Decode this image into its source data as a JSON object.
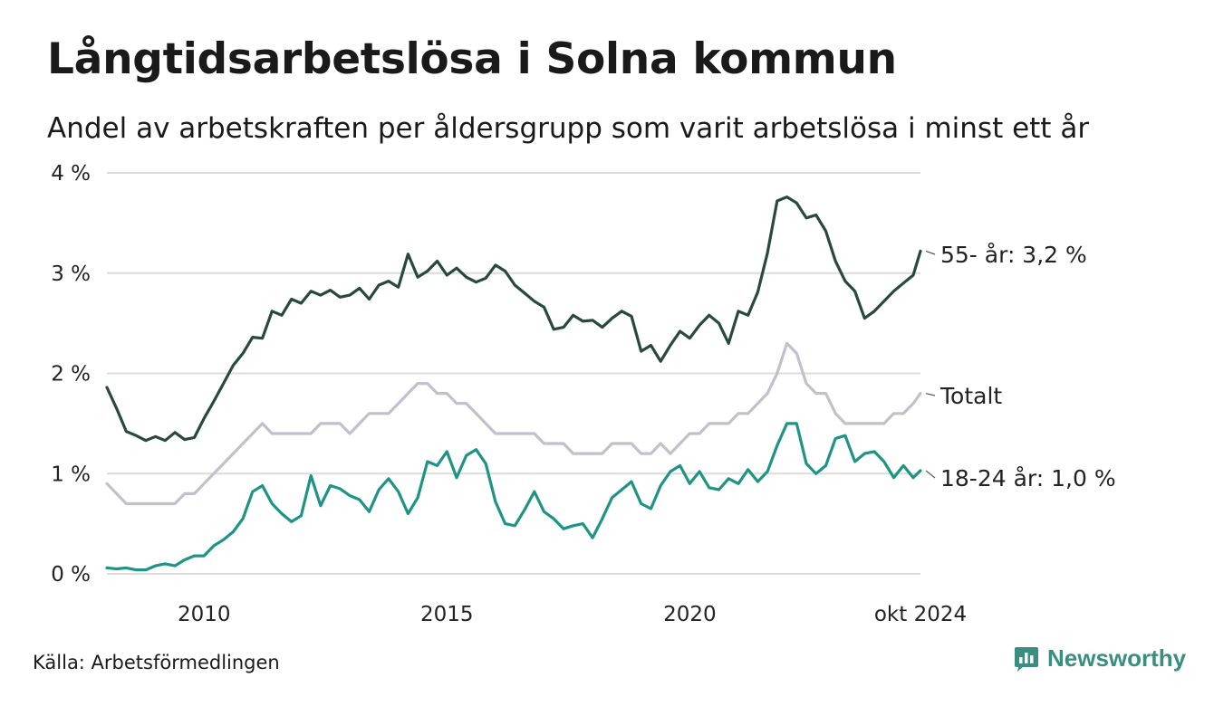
{
  "title": "Långtidsarbetslösa i Solna kommun",
  "subtitle": "Andel av arbetskraften per åldersgrupp som varit arbetslösa i minst ett år",
  "source": "Källa: Arbetsförmedlingen",
  "brand": {
    "name": "Newsworthy",
    "icon": "newsworthy-chart-bubble-icon"
  },
  "colors": {
    "s55": "#27493f",
    "total": "#c2c0cc",
    "s1824": "#1f9485",
    "grid": "#dcdcdc",
    "brand": "#3a8e80"
  },
  "chart_data": {
    "type": "line",
    "title": "Långtidsarbetslösa i Solna kommun",
    "xlabel": "",
    "ylabel": "",
    "x_start": 2008.0,
    "x_end": 2024.75,
    "xlim": [
      2008.0,
      2024.75
    ],
    "ylim": [
      0,
      4
    ],
    "x_ticks": [
      {
        "value": 2010,
        "label": "2010"
      },
      {
        "value": 2015,
        "label": "2015"
      },
      {
        "value": 2020,
        "label": "2020"
      },
      {
        "value": 2024.75,
        "label": "okt 2024"
      }
    ],
    "y_ticks": [
      {
        "value": 0,
        "label": "0 %"
      },
      {
        "value": 1,
        "label": "1 %"
      },
      {
        "value": 2,
        "label": "2 %"
      },
      {
        "value": 3,
        "label": "3 %"
      },
      {
        "value": 4,
        "label": "4 %"
      }
    ],
    "grid": true,
    "series": [
      {
        "name": "55- år",
        "label": "55- år: 3,2 %",
        "color_key": "s55",
        "points": [
          [
            2008.0,
            1.86
          ],
          [
            2008.2,
            1.65
          ],
          [
            2008.4,
            1.42
          ],
          [
            2008.6,
            1.38
          ],
          [
            2008.8,
            1.33
          ],
          [
            2009.0,
            1.37
          ],
          [
            2009.2,
            1.33
          ],
          [
            2009.4,
            1.41
          ],
          [
            2009.6,
            1.34
          ],
          [
            2009.8,
            1.36
          ],
          [
            2010.0,
            1.55
          ],
          [
            2010.2,
            1.72
          ],
          [
            2010.4,
            1.9
          ],
          [
            2010.6,
            2.08
          ],
          [
            2010.8,
            2.2
          ],
          [
            2011.0,
            2.36
          ],
          [
            2011.2,
            2.35
          ],
          [
            2011.4,
            2.62
          ],
          [
            2011.6,
            2.58
          ],
          [
            2011.8,
            2.74
          ],
          [
            2012.0,
            2.7
          ],
          [
            2012.2,
            2.82
          ],
          [
            2012.4,
            2.78
          ],
          [
            2012.6,
            2.83
          ],
          [
            2012.8,
            2.76
          ],
          [
            2013.0,
            2.78
          ],
          [
            2013.2,
            2.85
          ],
          [
            2013.4,
            2.74
          ],
          [
            2013.6,
            2.88
          ],
          [
            2013.8,
            2.92
          ],
          [
            2014.0,
            2.86
          ],
          [
            2014.2,
            3.19
          ],
          [
            2014.4,
            2.96
          ],
          [
            2014.6,
            3.02
          ],
          [
            2014.8,
            3.12
          ],
          [
            2015.0,
            2.98
          ],
          [
            2015.2,
            3.05
          ],
          [
            2015.4,
            2.96
          ],
          [
            2015.6,
            2.91
          ],
          [
            2015.8,
            2.95
          ],
          [
            2016.0,
            3.08
          ],
          [
            2016.2,
            3.02
          ],
          [
            2016.4,
            2.88
          ],
          [
            2016.6,
            2.8
          ],
          [
            2016.8,
            2.72
          ],
          [
            2017.0,
            2.66
          ],
          [
            2017.2,
            2.44
          ],
          [
            2017.4,
            2.46
          ],
          [
            2017.6,
            2.58
          ],
          [
            2017.8,
            2.52
          ],
          [
            2018.0,
            2.53
          ],
          [
            2018.2,
            2.46
          ],
          [
            2018.4,
            2.55
          ],
          [
            2018.6,
            2.62
          ],
          [
            2018.8,
            2.57
          ],
          [
            2019.0,
            2.22
          ],
          [
            2019.2,
            2.28
          ],
          [
            2019.4,
            2.12
          ],
          [
            2019.6,
            2.28
          ],
          [
            2019.8,
            2.42
          ],
          [
            2020.0,
            2.35
          ],
          [
            2020.2,
            2.48
          ],
          [
            2020.4,
            2.58
          ],
          [
            2020.6,
            2.5
          ],
          [
            2020.8,
            2.3
          ],
          [
            2021.0,
            2.62
          ],
          [
            2021.2,
            2.58
          ],
          [
            2021.4,
            2.81
          ],
          [
            2021.6,
            3.2
          ],
          [
            2021.8,
            3.72
          ],
          [
            2022.0,
            3.76
          ],
          [
            2022.2,
            3.7
          ],
          [
            2022.4,
            3.55
          ],
          [
            2022.6,
            3.58
          ],
          [
            2022.8,
            3.42
          ],
          [
            2023.0,
            3.12
          ],
          [
            2023.2,
            2.92
          ],
          [
            2023.4,
            2.82
          ],
          [
            2023.6,
            2.55
          ],
          [
            2023.8,
            2.62
          ],
          [
            2024.0,
            2.72
          ],
          [
            2024.2,
            2.82
          ],
          [
            2024.4,
            2.9
          ],
          [
            2024.6,
            2.98
          ],
          [
            2024.75,
            3.22
          ]
        ]
      },
      {
        "name": "Totalt",
        "label": "Totalt",
        "color_key": "total",
        "points": [
          [
            2008.0,
            0.9
          ],
          [
            2008.2,
            0.8
          ],
          [
            2008.4,
            0.7
          ],
          [
            2008.6,
            0.7
          ],
          [
            2008.8,
            0.7
          ],
          [
            2009.0,
            0.7
          ],
          [
            2009.2,
            0.7
          ],
          [
            2009.4,
            0.7
          ],
          [
            2009.6,
            0.8
          ],
          [
            2009.8,
            0.8
          ],
          [
            2010.0,
            0.9
          ],
          [
            2010.2,
            1.0
          ],
          [
            2010.4,
            1.1
          ],
          [
            2010.6,
            1.2
          ],
          [
            2010.8,
            1.3
          ],
          [
            2011.0,
            1.4
          ],
          [
            2011.2,
            1.5
          ],
          [
            2011.4,
            1.4
          ],
          [
            2011.6,
            1.4
          ],
          [
            2011.8,
            1.4
          ],
          [
            2012.0,
            1.4
          ],
          [
            2012.2,
            1.4
          ],
          [
            2012.4,
            1.5
          ],
          [
            2012.6,
            1.5
          ],
          [
            2012.8,
            1.5
          ],
          [
            2013.0,
            1.4
          ],
          [
            2013.2,
            1.5
          ],
          [
            2013.4,
            1.6
          ],
          [
            2013.6,
            1.6
          ],
          [
            2013.8,
            1.6
          ],
          [
            2014.0,
            1.7
          ],
          [
            2014.2,
            1.8
          ],
          [
            2014.4,
            1.9
          ],
          [
            2014.6,
            1.9
          ],
          [
            2014.8,
            1.8
          ],
          [
            2015.0,
            1.8
          ],
          [
            2015.2,
            1.7
          ],
          [
            2015.4,
            1.7
          ],
          [
            2015.6,
            1.6
          ],
          [
            2015.8,
            1.5
          ],
          [
            2016.0,
            1.4
          ],
          [
            2016.2,
            1.4
          ],
          [
            2016.4,
            1.4
          ],
          [
            2016.6,
            1.4
          ],
          [
            2016.8,
            1.4
          ],
          [
            2017.0,
            1.3
          ],
          [
            2017.2,
            1.3
          ],
          [
            2017.4,
            1.3
          ],
          [
            2017.6,
            1.2
          ],
          [
            2017.8,
            1.2
          ],
          [
            2018.0,
            1.2
          ],
          [
            2018.2,
            1.2
          ],
          [
            2018.4,
            1.3
          ],
          [
            2018.6,
            1.3
          ],
          [
            2018.8,
            1.3
          ],
          [
            2019.0,
            1.2
          ],
          [
            2019.2,
            1.2
          ],
          [
            2019.4,
            1.3
          ],
          [
            2019.6,
            1.2
          ],
          [
            2019.8,
            1.3
          ],
          [
            2020.0,
            1.4
          ],
          [
            2020.2,
            1.4
          ],
          [
            2020.4,
            1.5
          ],
          [
            2020.6,
            1.5
          ],
          [
            2020.8,
            1.5
          ],
          [
            2021.0,
            1.6
          ],
          [
            2021.2,
            1.6
          ],
          [
            2021.4,
            1.7
          ],
          [
            2021.6,
            1.8
          ],
          [
            2021.8,
            2.0
          ],
          [
            2022.0,
            2.3
          ],
          [
            2022.2,
            2.2
          ],
          [
            2022.4,
            1.9
          ],
          [
            2022.6,
            1.8
          ],
          [
            2022.8,
            1.8
          ],
          [
            2023.0,
            1.6
          ],
          [
            2023.2,
            1.5
          ],
          [
            2023.4,
            1.5
          ],
          [
            2023.6,
            1.5
          ],
          [
            2023.8,
            1.5
          ],
          [
            2024.0,
            1.5
          ],
          [
            2024.2,
            1.6
          ],
          [
            2024.4,
            1.6
          ],
          [
            2024.6,
            1.7
          ],
          [
            2024.75,
            1.8
          ]
        ]
      },
      {
        "name": "18-24 år",
        "label": "18-24 år: 1,0 %",
        "color_key": "s1824",
        "points": [
          [
            2008.0,
            0.06
          ],
          [
            2008.2,
            0.05
          ],
          [
            2008.4,
            0.06
          ],
          [
            2008.6,
            0.04
          ],
          [
            2008.8,
            0.04
          ],
          [
            2009.0,
            0.08
          ],
          [
            2009.2,
            0.1
          ],
          [
            2009.4,
            0.08
          ],
          [
            2009.6,
            0.14
          ],
          [
            2009.8,
            0.18
          ],
          [
            2010.0,
            0.18
          ],
          [
            2010.2,
            0.28
          ],
          [
            2010.4,
            0.34
          ],
          [
            2010.6,
            0.42
          ],
          [
            2010.8,
            0.55
          ],
          [
            2011.0,
            0.82
          ],
          [
            2011.2,
            0.88
          ],
          [
            2011.4,
            0.7
          ],
          [
            2011.6,
            0.6
          ],
          [
            2011.8,
            0.52
          ],
          [
            2012.0,
            0.58
          ],
          [
            2012.2,
            0.98
          ],
          [
            2012.4,
            0.68
          ],
          [
            2012.6,
            0.88
          ],
          [
            2012.8,
            0.85
          ],
          [
            2013.0,
            0.78
          ],
          [
            2013.2,
            0.74
          ],
          [
            2013.4,
            0.62
          ],
          [
            2013.6,
            0.84
          ],
          [
            2013.8,
            0.95
          ],
          [
            2014.0,
            0.82
          ],
          [
            2014.2,
            0.6
          ],
          [
            2014.4,
            0.76
          ],
          [
            2014.6,
            1.12
          ],
          [
            2014.8,
            1.08
          ],
          [
            2015.0,
            1.22
          ],
          [
            2015.2,
            0.96
          ],
          [
            2015.4,
            1.18
          ],
          [
            2015.6,
            1.24
          ],
          [
            2015.8,
            1.1
          ],
          [
            2016.0,
            0.72
          ],
          [
            2016.2,
            0.5
          ],
          [
            2016.4,
            0.48
          ],
          [
            2016.6,
            0.64
          ],
          [
            2016.8,
            0.82
          ],
          [
            2017.0,
            0.62
          ],
          [
            2017.2,
            0.55
          ],
          [
            2017.4,
            0.45
          ],
          [
            2017.6,
            0.48
          ],
          [
            2017.8,
            0.5
          ],
          [
            2018.0,
            0.36
          ],
          [
            2018.2,
            0.55
          ],
          [
            2018.4,
            0.76
          ],
          [
            2018.6,
            0.84
          ],
          [
            2018.8,
            0.92
          ],
          [
            2019.0,
            0.7
          ],
          [
            2019.2,
            0.65
          ],
          [
            2019.4,
            0.88
          ],
          [
            2019.6,
            1.02
          ],
          [
            2019.8,
            1.08
          ],
          [
            2020.0,
            0.9
          ],
          [
            2020.2,
            1.02
          ],
          [
            2020.4,
            0.86
          ],
          [
            2020.6,
            0.84
          ],
          [
            2020.8,
            0.95
          ],
          [
            2021.0,
            0.9
          ],
          [
            2021.2,
            1.04
          ],
          [
            2021.4,
            0.92
          ],
          [
            2021.6,
            1.02
          ],
          [
            2021.8,
            1.28
          ],
          [
            2022.0,
            1.5
          ],
          [
            2022.2,
            1.5
          ],
          [
            2022.4,
            1.1
          ],
          [
            2022.6,
            1.0
          ],
          [
            2022.8,
            1.08
          ],
          [
            2023.0,
            1.35
          ],
          [
            2023.2,
            1.38
          ],
          [
            2023.4,
            1.12
          ],
          [
            2023.6,
            1.2
          ],
          [
            2023.8,
            1.22
          ],
          [
            2024.0,
            1.12
          ],
          [
            2024.2,
            0.96
          ],
          [
            2024.4,
            1.08
          ],
          [
            2024.6,
            0.96
          ],
          [
            2024.75,
            1.03
          ]
        ]
      }
    ]
  }
}
